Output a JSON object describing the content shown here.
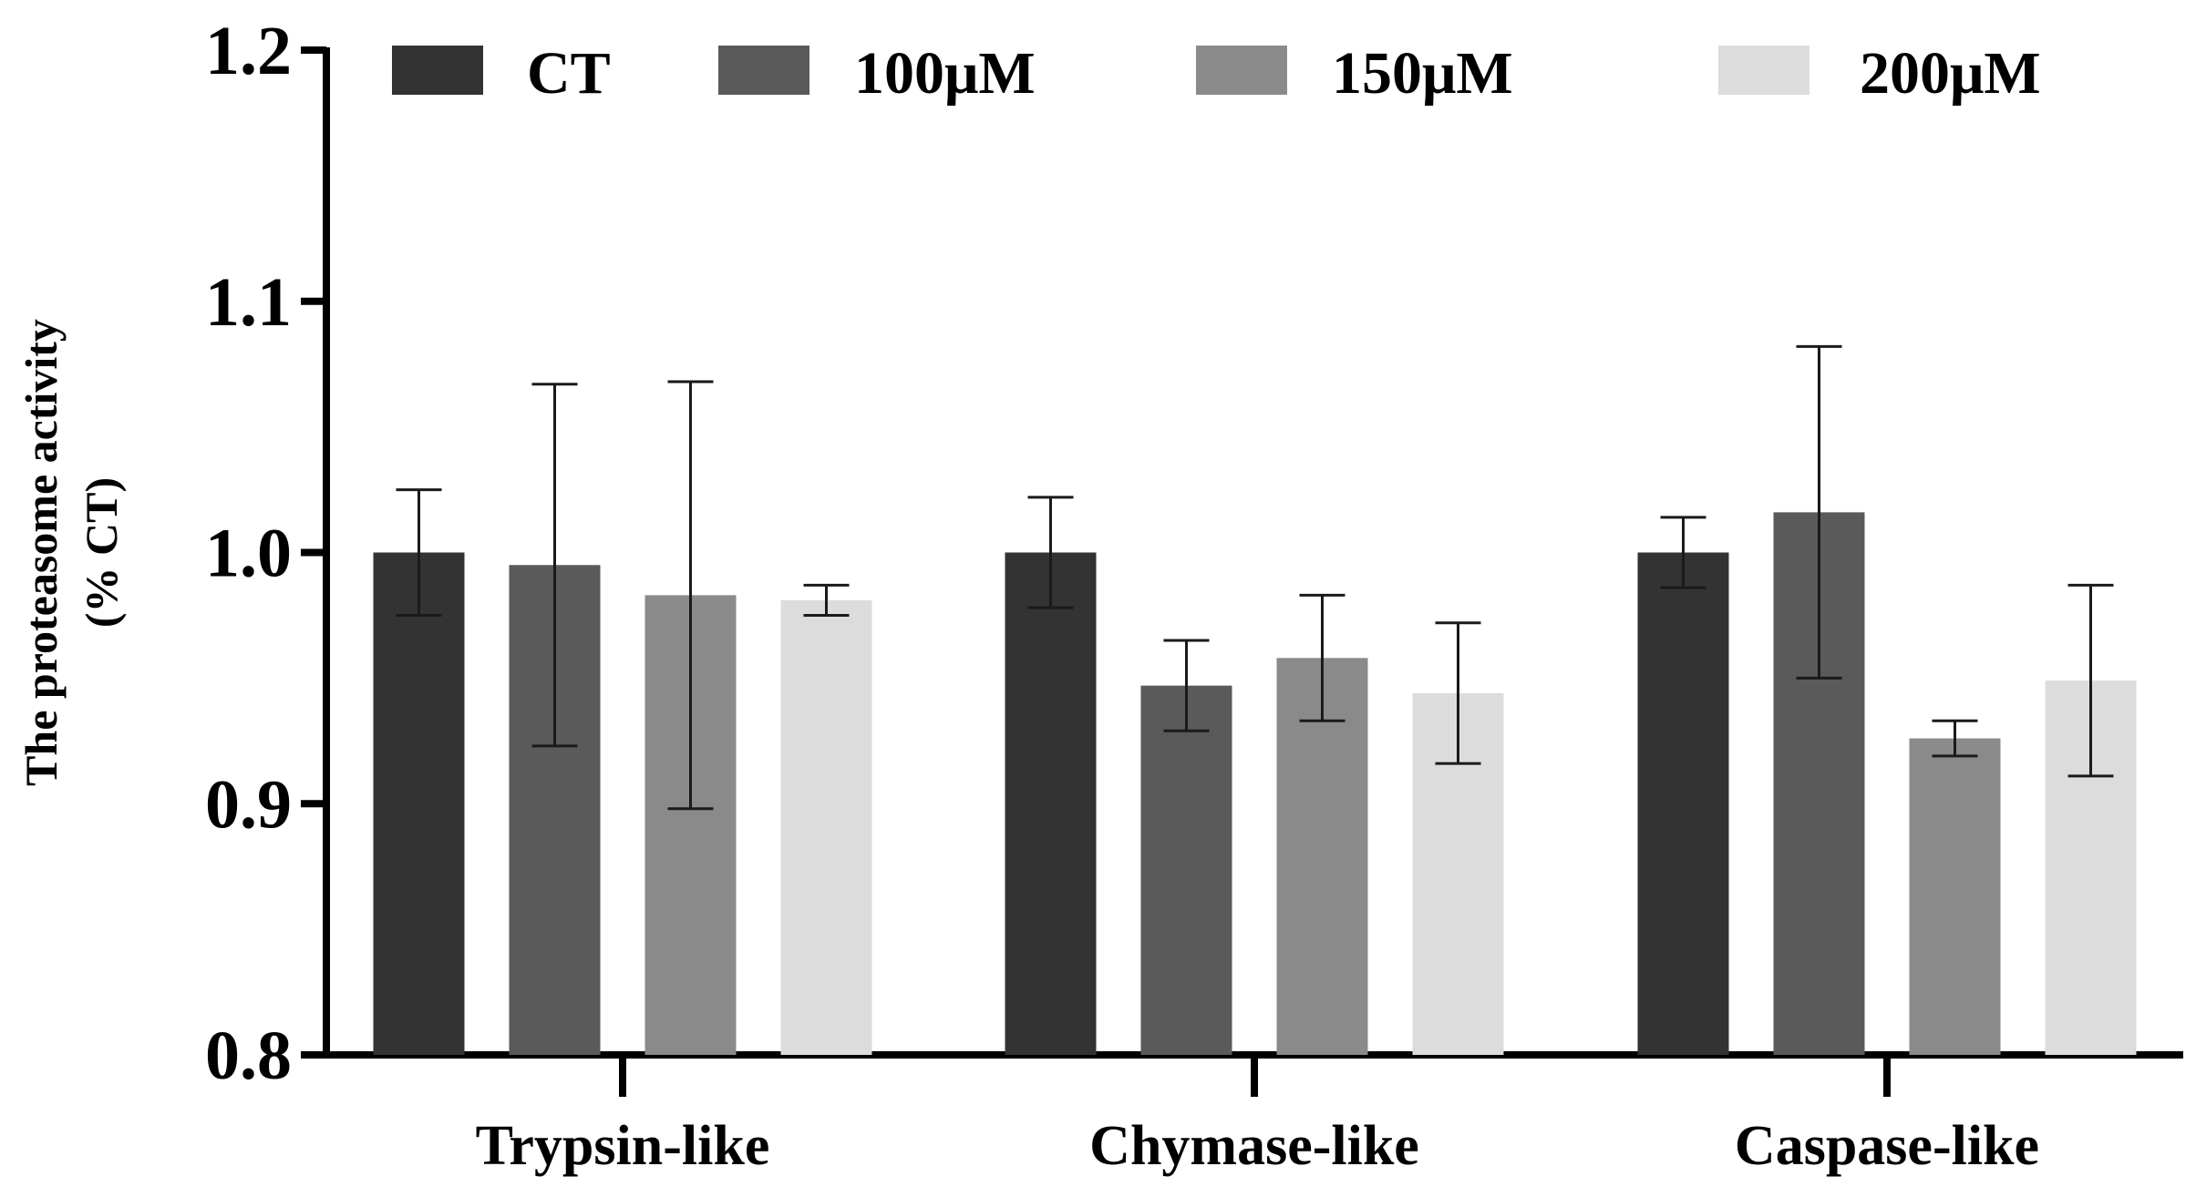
{
  "chart_data": {
    "type": "bar",
    "title": "",
    "xlabel": "",
    "ylabel": [
      "The proteasome activity",
      "(% CT)"
    ],
    "ylim": [
      0.8,
      1.2
    ],
    "yticks": [
      "0.8",
      "0.9",
      "1.0",
      "1.1",
      "1.2"
    ],
    "categories": [
      "Trypsin-like",
      "Chymase-like",
      "Caspase-like"
    ],
    "legend_position": "top",
    "grid": false,
    "series": [
      {
        "name": "CT",
        "color": "#333333",
        "values": [
          1.0,
          1.0,
          1.0
        ],
        "errors": [
          0.025,
          0.022,
          0.014
        ]
      },
      {
        "name": "100μM",
        "color": "#5a5a5a",
        "values": [
          0.995,
          0.947,
          1.016
        ],
        "errors": [
          0.072,
          0.018,
          0.066
        ]
      },
      {
        "name": "150μM",
        "color": "#8a8a8a",
        "values": [
          0.983,
          0.958,
          0.926
        ],
        "errors": [
          0.085,
          0.025,
          0.007
        ]
      },
      {
        "name": "200μM",
        "color": "#dcdcdc",
        "values": [
          0.981,
          0.944,
          0.949
        ],
        "errors": [
          0.006,
          0.028,
          0.038
        ]
      }
    ]
  }
}
